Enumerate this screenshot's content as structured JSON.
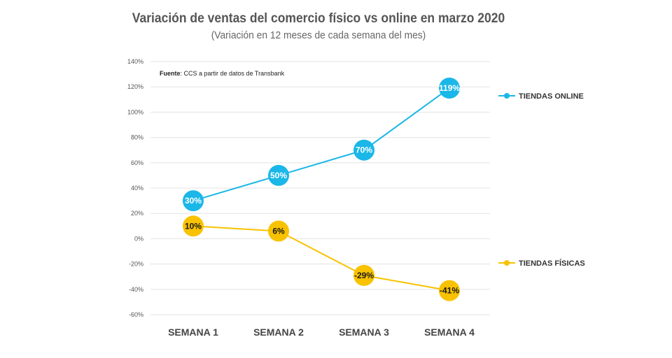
{
  "chart_data": {
    "type": "line",
    "title": "Variación de ventas del comercio físico vs online en marzo 2020",
    "subtitle": "(Variación en 12 meses de cada semana del mes)",
    "source_label": "Fuente",
    "source_text": ": CCS a partir de datos de Transbank",
    "categories": [
      "SEMANA 1",
      "SEMANA 2",
      "SEMANA 3",
      "SEMANA 4"
    ],
    "ylim": [
      -60,
      140
    ],
    "yticks": [
      140,
      120,
      100,
      80,
      60,
      40,
      20,
      0,
      -20,
      -40,
      -60
    ],
    "ytick_labels": [
      "140%",
      "120%",
      "100%",
      "80%",
      "60%",
      "40%",
      "20%",
      "0%",
      "-20%",
      "-40%",
      "-60%"
    ],
    "grid": true,
    "legend_placement": "right",
    "series": [
      {
        "name": "TIENDAS ONLINE",
        "color": "#1ab7e8",
        "label_color": "#ffffff",
        "values": [
          30,
          50,
          70,
          119
        ],
        "labels": [
          "30%",
          "50%",
          "70%",
          "119%"
        ]
      },
      {
        "name": "TIENDAS FÍSICAS",
        "color": "#f9c200",
        "label_color": "#1a1a1a",
        "values": [
          10,
          6,
          -29,
          -41
        ],
        "labels": [
          "10%",
          "6%",
          "-29%",
          "-41%"
        ]
      }
    ]
  }
}
